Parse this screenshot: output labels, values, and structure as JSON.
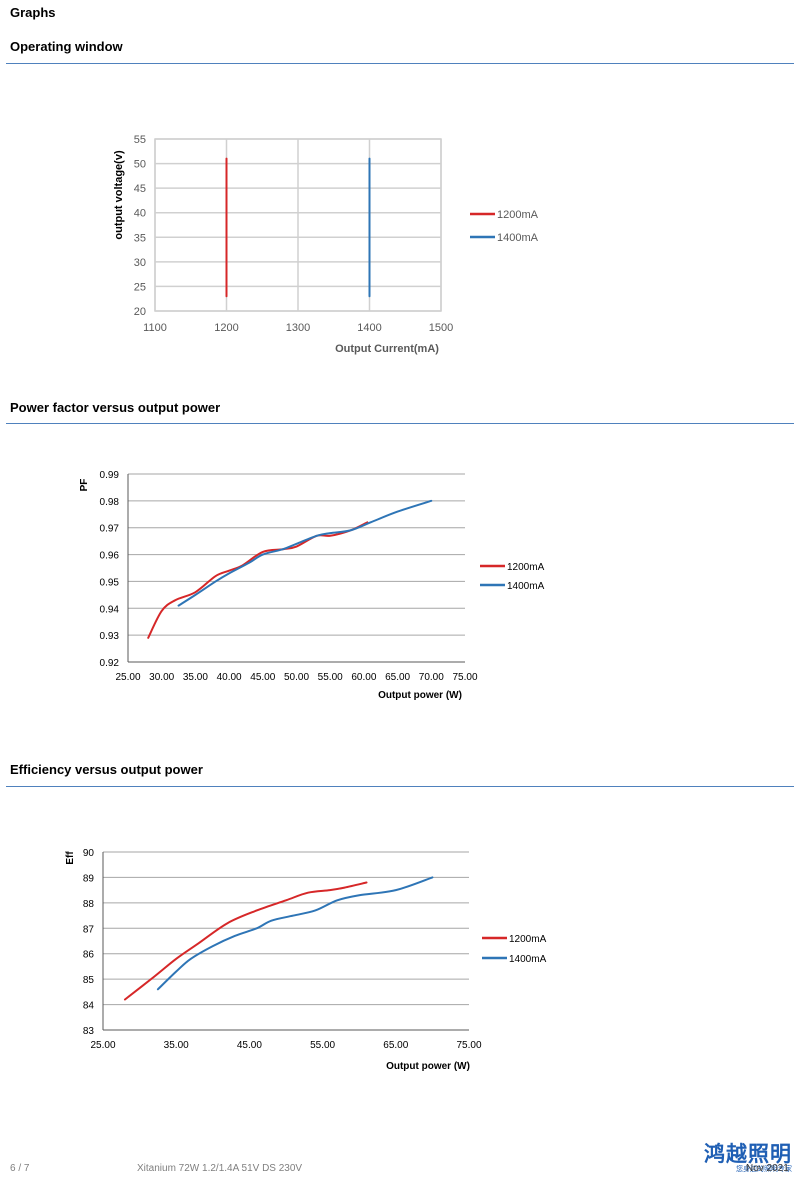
{
  "page": {
    "section_title": "Graphs",
    "footer_page": "6 / 7",
    "footer_product": "Xitanium 72W 1.2/1.4A 51V DS 230V",
    "footer_date": "Nov 2021",
    "logo_text": "鸿越照明",
    "logo_subtext": "您身边的照明专家"
  },
  "sections": [
    {
      "title": "Operating window"
    },
    {
      "title": "Power factor versus output power"
    },
    {
      "title": "Efficiency versus output power"
    }
  ],
  "colors": {
    "series_1200": "#d62728",
    "series_1400": "#2e75b6",
    "rule": "#4f81bd"
  },
  "chart_data": [
    {
      "type": "line",
      "xlabel": "Output Current(mA)",
      "ylabel": "output voltage(v)",
      "xlim": [
        1100,
        1500
      ],
      "ylim": [
        20,
        55
      ],
      "xticks": [
        1100,
        1200,
        1300,
        1400,
        1500
      ],
      "yticks": [
        20,
        25,
        30,
        35,
        40,
        45,
        50,
        55
      ],
      "grid": "both",
      "legend": "right",
      "series": [
        {
          "name": "1200mA",
          "color": "#d62728",
          "points": [
            [
              1200,
              23
            ],
            [
              1200,
              51
            ]
          ]
        },
        {
          "name": "1400mA",
          "color": "#2e75b6",
          "points": [
            [
              1400,
              23
            ],
            [
              1400,
              51
            ]
          ]
        }
      ]
    },
    {
      "type": "line",
      "xlabel": "Output power (W)",
      "ylabel": "PF",
      "xlim": [
        25,
        75
      ],
      "ylim": [
        0.92,
        0.99
      ],
      "xticks": [
        "25.00",
        "30.00",
        "35.00",
        "40.00",
        "45.00",
        "50.00",
        "55.00",
        "60.00",
        "65.00",
        "70.00",
        "75.00"
      ],
      "yticks": [
        "0.92",
        "0.93",
        "0.94",
        "0.95",
        "0.96",
        "0.97",
        "0.98",
        "0.99"
      ],
      "grid": "horizontal",
      "legend": "right",
      "series": [
        {
          "name": "1200mA",
          "color": "#d62728",
          "points": [
            [
              28,
              0.929
            ],
            [
              30,
              0.939
            ],
            [
              32,
              0.943
            ],
            [
              35,
              0.946
            ],
            [
              38,
              0.952
            ],
            [
              40,
              0.954
            ],
            [
              42,
              0.956
            ],
            [
              45,
              0.961
            ],
            [
              48,
              0.962
            ],
            [
              50,
              0.963
            ],
            [
              53,
              0.967
            ],
            [
              55,
              0.967
            ],
            [
              58,
              0.969
            ],
            [
              60.5,
              0.972
            ]
          ]
        },
        {
          "name": "1400mA",
          "color": "#2e75b6",
          "points": [
            [
              32.5,
              0.941
            ],
            [
              35,
              0.945
            ],
            [
              38,
              0.95
            ],
            [
              40,
              0.953
            ],
            [
              43,
              0.957
            ],
            [
              45,
              0.96
            ],
            [
              48,
              0.962
            ],
            [
              50,
              0.964
            ],
            [
              53,
              0.967
            ],
            [
              55,
              0.968
            ],
            [
              58,
              0.969
            ],
            [
              61,
              0.972
            ],
            [
              65,
              0.976
            ],
            [
              70,
              0.98
            ]
          ]
        }
      ]
    },
    {
      "type": "line",
      "xlabel": "Output power (W)",
      "ylabel": "Eff",
      "xlim": [
        25,
        75
      ],
      "ylim": [
        83,
        90
      ],
      "xticks": [
        "25.00",
        "35.00",
        "45.00",
        "55.00",
        "65.00",
        "75.00"
      ],
      "yticks": [
        "83",
        "84",
        "85",
        "86",
        "87",
        "88",
        "89",
        "90"
      ],
      "grid": "horizontal",
      "legend": "right",
      "series": [
        {
          "name": "1200mA",
          "color": "#d62728",
          "points": [
            [
              28,
              84.2
            ],
            [
              32,
              85.1
            ],
            [
              35,
              85.8
            ],
            [
              38,
              86.4
            ],
            [
              42,
              87.2
            ],
            [
              46,
              87.7
            ],
            [
              50,
              88.1
            ],
            [
              53,
              88.4
            ],
            [
              56,
              88.5
            ],
            [
              58,
              88.6
            ],
            [
              61,
              88.8
            ]
          ]
        },
        {
          "name": "1400mA",
          "color": "#2e75b6",
          "points": [
            [
              32.5,
              84.6
            ],
            [
              35,
              85.3
            ],
            [
              37,
              85.8
            ],
            [
              40,
              86.3
            ],
            [
              43,
              86.7
            ],
            [
              46,
              87.0
            ],
            [
              48,
              87.3
            ],
            [
              51,
              87.5
            ],
            [
              54,
              87.7
            ],
            [
              57,
              88.1
            ],
            [
              60,
              88.3
            ],
            [
              65,
              88.5
            ],
            [
              70,
              89.0
            ]
          ]
        }
      ]
    }
  ]
}
